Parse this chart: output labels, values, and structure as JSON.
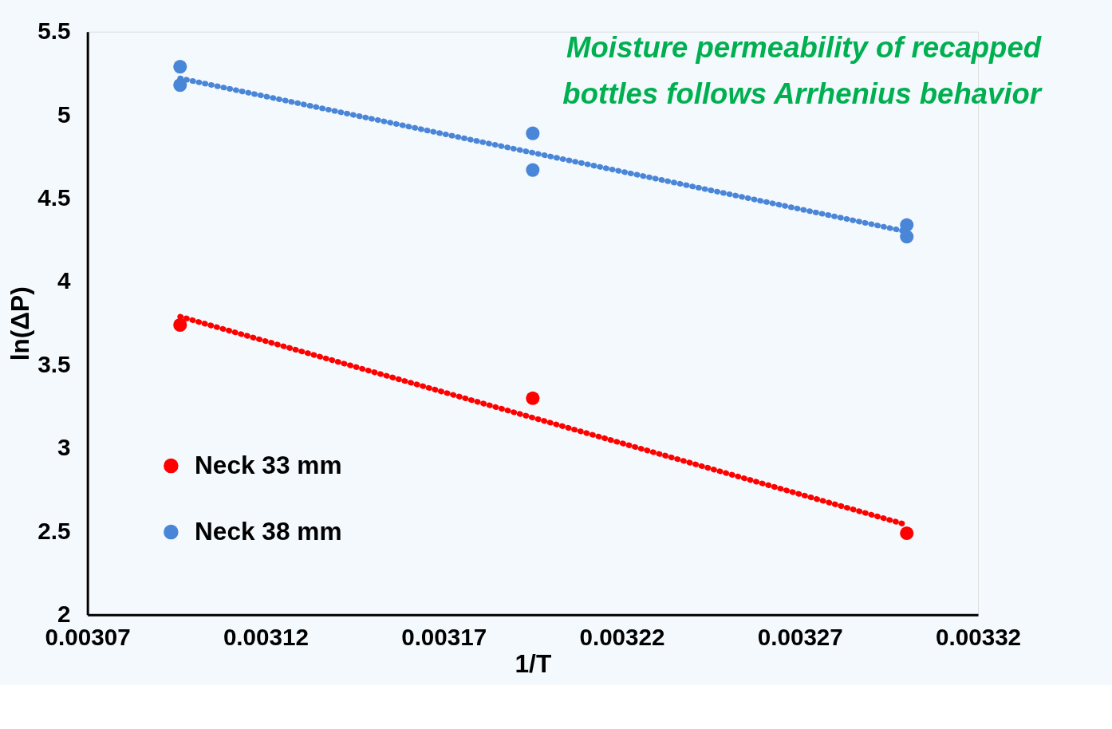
{
  "chart_data": {
    "type": "scatter",
    "title": "Moisture permeability of recapped bottles follows Arrhenius behavior",
    "xlabel": "1/T",
    "ylabel": "ln(ΔP)",
    "xlim": [
      0.00307,
      0.00332
    ],
    "xticks": [
      0.00307,
      0.00312,
      0.00317,
      0.00322,
      0.00327,
      0.00332
    ],
    "ylim": [
      2,
      5.5
    ],
    "yticks": [
      2,
      2.5,
      3,
      3.5,
      4,
      4.5,
      5,
      5.5
    ],
    "grid": false,
    "legend": "bottom left",
    "marker": "circle",
    "series": [
      {
        "name": "Neck 33 mm",
        "color": "#ff0000",
        "x": [
          0.003096,
          0.003195,
          0.0033
        ],
        "values": [
          3.74,
          3.3,
          2.49
        ]
      },
      {
        "name": "Neck 38 mm",
        "color": "#4a86d8",
        "x": [
          0.003096,
          0.003096,
          0.003195,
          0.003195,
          0.0033,
          0.0033
        ],
        "values": [
          5.29,
          5.18,
          4.89,
          4.67,
          4.34,
          4.27
        ]
      },
      {
        "type": "line",
        "marker": "none",
        "line_style": "dotted",
        "color": "#ff0000",
        "x": [
          0.003096,
          0.0033
        ],
        "values": [
          3.79,
          2.54
        ]
      },
      {
        "type": "line",
        "marker": "none",
        "line_style": "dotted",
        "color": "#4a86d8",
        "x": [
          0.003096,
          0.0033
        ],
        "values": [
          5.22,
          4.3
        ]
      }
    ]
  }
}
